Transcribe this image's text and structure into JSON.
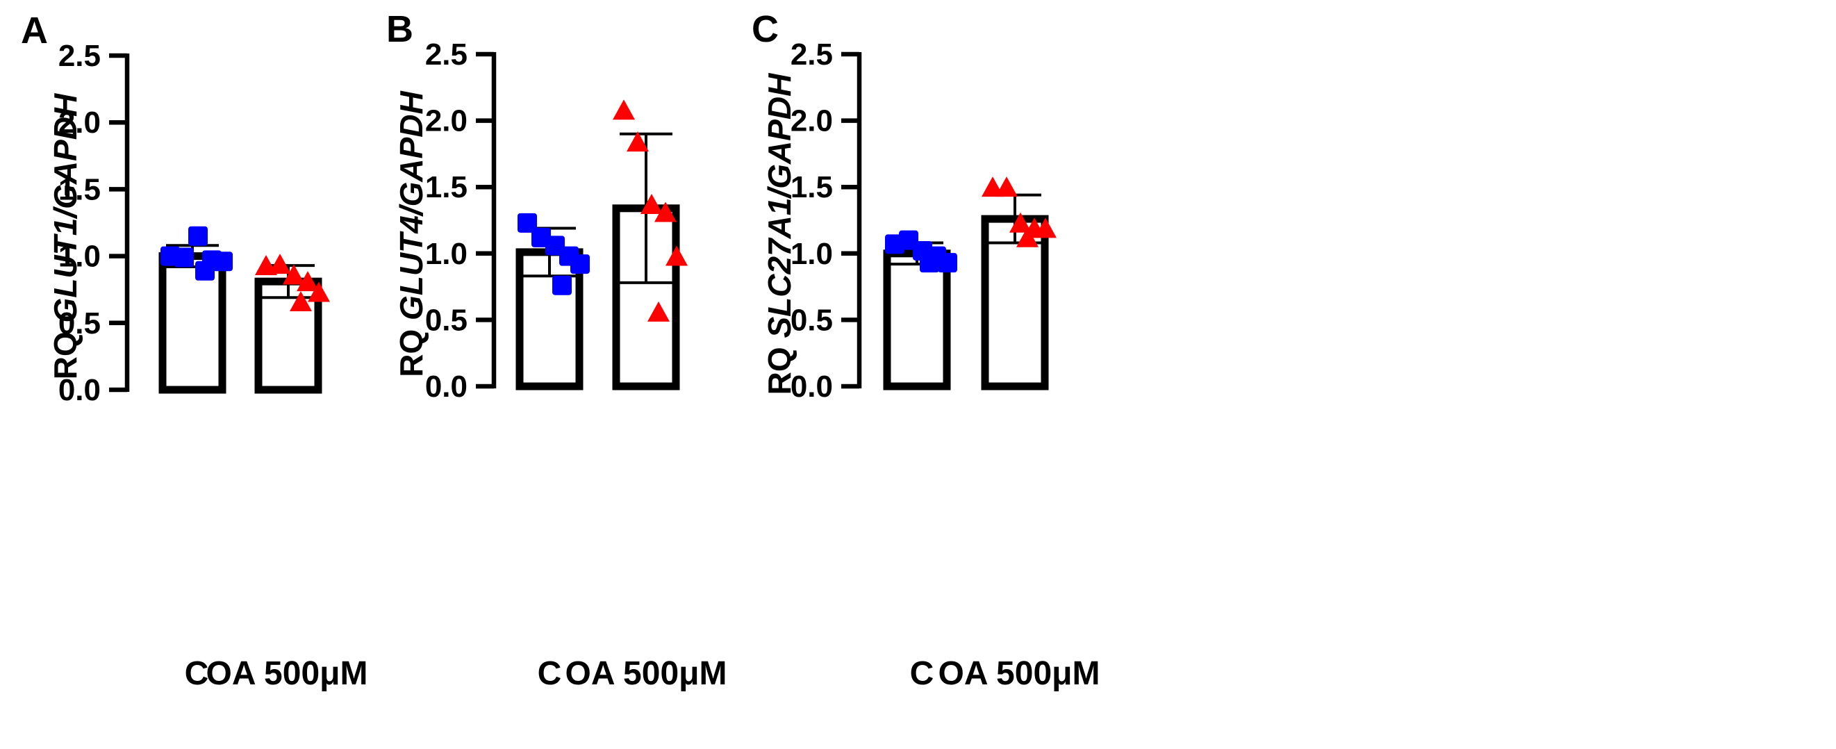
{
  "colors": {
    "control": "#0000ff",
    "treated": "#ff0000",
    "axis": "#000000"
  },
  "chart_data": [
    {
      "type": "bar",
      "panel_label": "A",
      "ylabel_prefix": "RQ ",
      "ylabel_gene": "GLUT1/GAPDH",
      "ylim": [
        0,
        2.5
      ],
      "yticks": [
        "0.0",
        "0.5",
        "1.0",
        "1.5",
        "2.0",
        "2.5"
      ],
      "categories": [
        "C",
        "OA 500μM"
      ],
      "values": [
        1.0,
        0.81
      ],
      "errors": [
        0.08,
        0.12
      ],
      "points": [
        {
          "group": 0,
          "marker": "square",
          "values": [
            1.0,
            0.99,
            1.15,
            0.97,
            0.96,
            0.89
          ]
        },
        {
          "group": 1,
          "marker": "triangle",
          "values": [
            0.92,
            0.93,
            0.85,
            0.8,
            0.72,
            0.65
          ]
        }
      ]
    },
    {
      "type": "bar",
      "panel_label": "B",
      "ylabel_prefix": "RQ ",
      "ylabel_gene": "GLUT4/GAPDH",
      "ylim": [
        0,
        2.5
      ],
      "yticks": [
        "0.0",
        "0.5",
        "1.0",
        "1.5",
        "2.0",
        "2.5"
      ],
      "categories": [
        "C",
        "OA 500μM"
      ],
      "values": [
        1.01,
        1.34
      ],
      "errors": [
        0.18,
        0.56
      ],
      "points": [
        {
          "group": 0,
          "marker": "square",
          "values": [
            1.23,
            1.12,
            1.06,
            0.98,
            0.92,
            0.76
          ]
        },
        {
          "group": 1,
          "marker": "triangle",
          "values": [
            2.07,
            1.83,
            1.36,
            1.3,
            0.97,
            0.55
          ]
        }
      ]
    },
    {
      "type": "bar",
      "panel_label": "C",
      "ylabel_prefix": "RQ ",
      "ylabel_gene": "SLC27A1/GAPDH",
      "ylim": [
        0,
        2.5
      ],
      "yticks": [
        "0.0",
        "0.5",
        "1.0",
        "1.5",
        "2.0",
        "2.5"
      ],
      "categories": [
        "C",
        "OA 500μM"
      ],
      "values": [
        1.0,
        1.26
      ],
      "errors": [
        0.08,
        0.18
      ],
      "points": [
        {
          "group": 0,
          "marker": "square",
          "values": [
            1.07,
            1.1,
            1.02,
            0.98,
            0.93,
            0.93
          ]
        },
        {
          "group": 1,
          "marker": "triangle",
          "values": [
            1.49,
            1.49,
            1.22,
            1.18,
            1.18,
            1.11
          ]
        }
      ]
    }
  ]
}
